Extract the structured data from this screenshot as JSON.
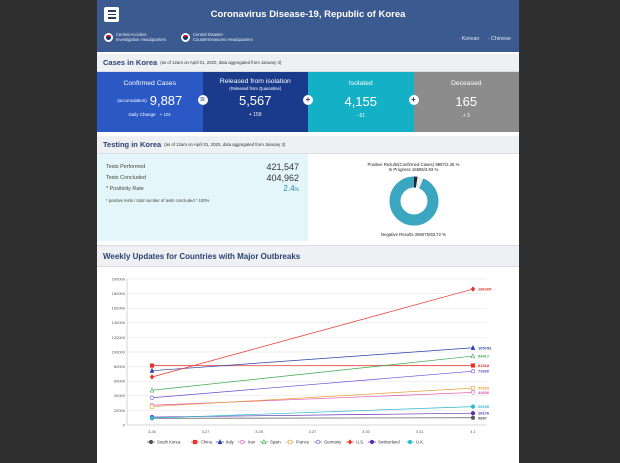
{
  "header": {
    "title": "Coronavirus Disease-19, Republic of Korea",
    "hq1_line1": "Central Accident",
    "hq1_line2": "Investigation Headquarters",
    "hq2_line1": "Central Disaster",
    "hq2_line2": "Countermeasures Headquarters",
    "lang_korean": "· Korean",
    "lang_chinese": "· Chinese"
  },
  "cases": {
    "heading": "Cases in Korea",
    "note": "(as of 12am on April 01, 2020, data aggregated from January 3)",
    "confirmed": {
      "label": "Confirmed Cases",
      "accum_label": "(accumulation)",
      "value": "9,887",
      "change_label": "Daily Change",
      "change": "+ 101"
    },
    "released": {
      "label": "Released from isolation",
      "sub": "(Released from Quarantine)",
      "value": "5,567",
      "change": "+ 159"
    },
    "isolated": {
      "label": "Isolated",
      "value": "4,155",
      "change": "- 61"
    },
    "deceased": {
      "label": "Deceased",
      "value": "165",
      "change": "+ 3"
    },
    "sep_eq": "=",
    "sep_plus": "+",
    "colors": {
      "confirmed": "#2a59c5",
      "released": "#1a3a8c",
      "isolated": "#14b0c5",
      "deceased": "#8c8c8c"
    }
  },
  "testing": {
    "heading": "Testing in Korea",
    "note": "(as of 12am on April 01, 2020, data aggregated from January 3)",
    "performed_label": "Tests Performed",
    "performed_value": "421,547",
    "concluded_label": "Tests Concluded",
    "concluded_value": "404,962",
    "rate_label": "* Positivity Rate",
    "rate_value": "2.4",
    "rate_unit": "%",
    "footnote": "* positive tests / total number of tests concluded * 100%",
    "positive_label": "Positive Results(Confirmed Cases) 9887/2.35 %",
    "progress_label": "In Progress 16585/3.93 %",
    "negative_label": "Negative Results 395075/93.72 %",
    "donut": {
      "positive_pct": 2.35,
      "progress_pct": 3.93,
      "negative_pct": 93.72
    },
    "donut_colors": {
      "positive": "#1e2a3a",
      "progress": "#eeeeee",
      "negative": "#3aa6bf"
    }
  },
  "weekly": {
    "heading": "Weekly Updates for Countries with Major Outbreaks"
  },
  "chart_data": {
    "type": "line",
    "categories": [
      "3.26",
      "3.27",
      "3.28",
      "3.27",
      "3.30",
      "3.31",
      "4.1"
    ],
    "ylim": [
      0,
      200000
    ],
    "yticks": [
      "0",
      "20000",
      "40000",
      "60000",
      "80000",
      "100000",
      "120000",
      "140000",
      "160000",
      "180000",
      "200000"
    ],
    "grid": true,
    "legend_position": "bottom",
    "series": [
      {
        "name": "South Korea",
        "color": "#555555",
        "marker": "circle-filled",
        "start": 9241,
        "end": 9887,
        "end_label": "9887"
      },
      {
        "name": "China",
        "color": "#e8332a",
        "marker": "square",
        "start": 81340,
        "end": 81518,
        "end_label": "81518"
      },
      {
        "name": "Italy",
        "color": "#2b3fa8",
        "marker": "triangle",
        "start": 74386,
        "end": 105792,
        "end_label": "105792"
      },
      {
        "name": "Iran",
        "color": "#e04fb0",
        "marker": "circle-open",
        "start": 27017,
        "end": 44606,
        "end_label": "44606"
      },
      {
        "name": "Spain",
        "color": "#3aa84a",
        "marker": "triangle-open",
        "start": 47610,
        "end": 94417,
        "end_label": "94417"
      },
      {
        "name": "France",
        "color": "#e8a33a",
        "marker": "square-open",
        "start": 25233,
        "end": 50528,
        "end_label": "50528"
      },
      {
        "name": "Germany",
        "color": "#6a4bd8",
        "marker": "circle-open",
        "start": 37323,
        "end": 73690,
        "end_label": "73690"
      },
      {
        "name": "U.S.",
        "color": "#e8332a",
        "marker": "diamond",
        "start": 65778,
        "end": 186265,
        "end_label": "186265"
      },
      {
        "name": "Switzerland",
        "color": "#5b2db0",
        "marker": "circle-filled",
        "start": 10897,
        "end": 16176,
        "end_label": "16176"
      },
      {
        "name": "U.K.",
        "color": "#2bb8d0",
        "marker": "circle-filled",
        "start": 9529,
        "end": 25150,
        "end_label": "25150"
      }
    ]
  }
}
